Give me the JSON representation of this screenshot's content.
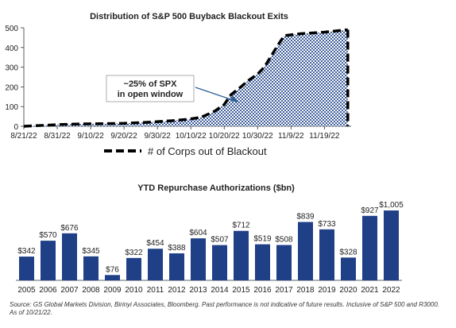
{
  "colors": {
    "exits_fill": "#3f5f9c",
    "bars": "#1f3f87",
    "axis": "#333333",
    "callout_arrow": "#2e5f96"
  },
  "chart_data": [
    {
      "type": "area",
      "title": "Distribution of S&P 500 Buyback Blackout Exits",
      "ylim": [
        0,
        500
      ],
      "yticks": [
        0,
        100,
        200,
        300,
        400,
        500
      ],
      "x_ticks": [
        "8/21/22",
        "8/31/22",
        "9/10/22",
        "9/20/22",
        "9/30/22",
        "10/10/22",
        "10/20/22",
        "10/30/22",
        "11/9/22",
        "11/19/22"
      ],
      "x_range": [
        "2022-08-21",
        "2022-11-27"
      ],
      "series": [
        {
          "name": "# of Corps out of Blackout",
          "style": "dashed-line-patterned-area",
          "x": [
            "2022-08-21",
            "2022-08-27",
            "2022-09-01",
            "2022-09-08",
            "2022-09-13",
            "2022-09-20",
            "2022-09-27",
            "2022-10-04",
            "2022-10-09",
            "2022-10-13",
            "2022-10-17",
            "2022-10-20",
            "2022-10-22",
            "2022-10-25",
            "2022-10-27",
            "2022-10-30",
            "2022-11-01",
            "2022-11-03",
            "2022-11-05",
            "2022-11-07",
            "2022-11-12",
            "2022-11-19",
            "2022-11-26"
          ],
          "values": [
            0,
            5,
            9,
            12,
            13,
            15,
            20,
            28,
            35,
            45,
            75,
            110,
            160,
            200,
            230,
            265,
            300,
            355,
            410,
            460,
            470,
            478,
            490
          ]
        }
      ],
      "annotations": [
        "~25% of SPX",
        "in open window"
      ],
      "grid": false,
      "legend": "bottom"
    },
    {
      "type": "bar",
      "title": "YTD Repurchase Authorizations ($bn)",
      "categories": [
        "2005",
        "2006",
        "2007",
        "2008",
        "2009",
        "2010",
        "2011",
        "2012",
        "2013",
        "2014",
        "2015",
        "2016",
        "2017",
        "2018",
        "2019",
        "2020",
        "2021",
        "2022"
      ],
      "values": [
        342,
        570,
        676,
        345,
        76,
        322,
        454,
        388,
        604,
        507,
        712,
        519,
        508,
        839,
        733,
        328,
        927,
        1005
      ],
      "labels": [
        "$342",
        "$570",
        "$676",
        "$345",
        "$76",
        "$322",
        "$454",
        "$388",
        "$604",
        "$507",
        "$712",
        "$519",
        "$508",
        "$839",
        "$733",
        "$328",
        "$927",
        "$1,005"
      ],
      "ylim": [
        0,
        1005
      ],
      "grid": false
    }
  ],
  "source_note": "Source: GS Global Markets Division, Birinyi Associates, Bloomberg. Past performance is not indicative of future results. Inclusive of S&P 500 and R3000. As of 10/21/22."
}
